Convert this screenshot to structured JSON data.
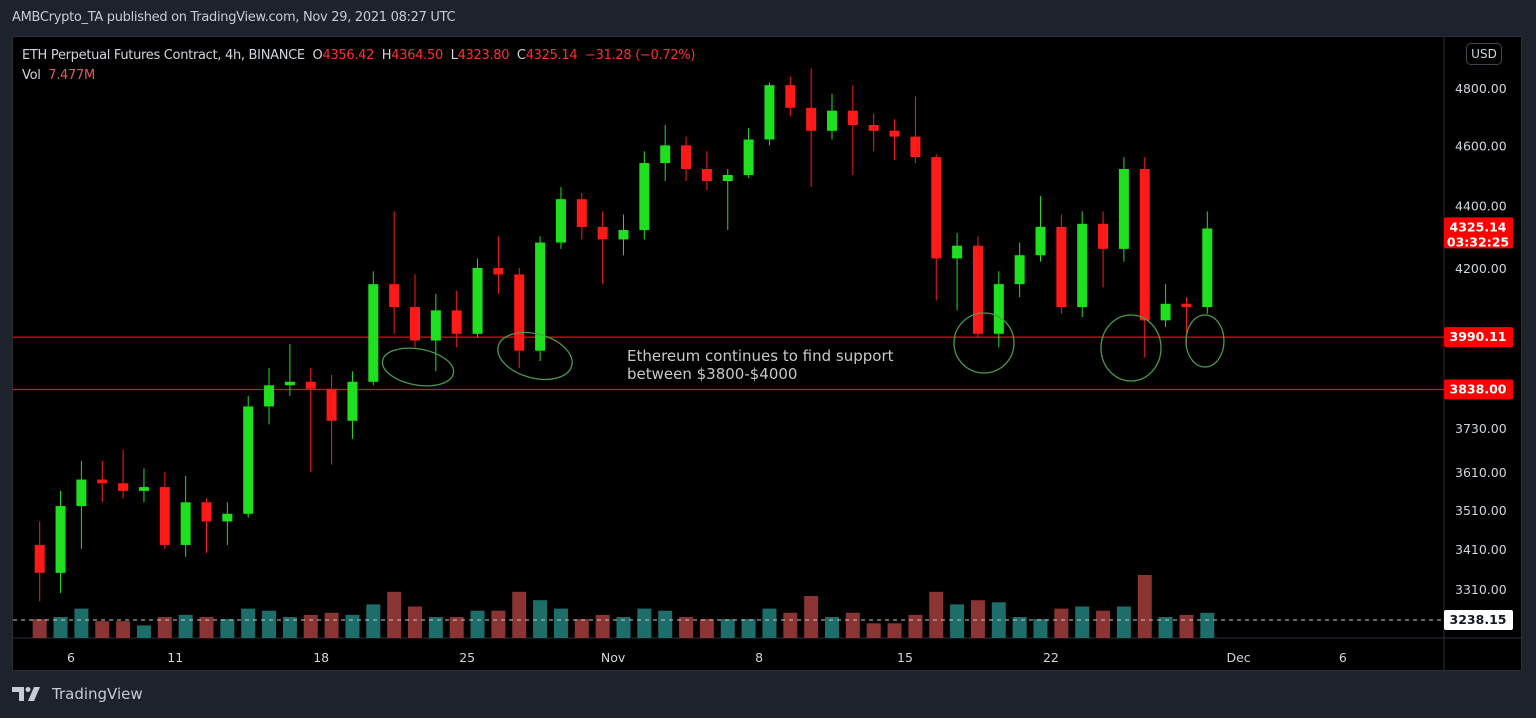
{
  "header": {
    "published": "AMBCrypto_TA published on TradingView.com, Nov 29, 2021 08:27 UTC"
  },
  "legend": {
    "symbol": "ETH Perpetual Futures Contract, 4h, BINANCE",
    "open_label": "O",
    "open": "4356.42",
    "high_label": "H",
    "high": "4364.50",
    "low_label": "L",
    "low": "4323.80",
    "close_label": "C",
    "close": "4325.14",
    "change": "−31.28 (−0.72%)",
    "vol_label": "Vol",
    "vol": "7.477M"
  },
  "currency_button": "USD",
  "footer": {
    "logo_text": "TradingView",
    "logo_icon": "tradingview-logo-icon"
  },
  "colors": {
    "up": "#1fe01f",
    "down": "#ff1a1a",
    "vol_up": "#1d6e6a",
    "vol_down": "#8a3434",
    "level_line": "#e01010",
    "annotation": "#4a9a4a",
    "last_price_badge": "#ff0000"
  },
  "chart_data": {
    "type": "candlestick",
    "scale": "log",
    "ylim": [
      3180,
      4950
    ],
    "y_ticks": [
      "4800.00",
      "4600.00",
      "4400.00",
      "4200.00",
      "3730.00",
      "3610.00",
      "3510.00",
      "3410.00",
      "3310.00"
    ],
    "y_tick_values": [
      4800,
      4600,
      4400,
      4200,
      3730,
      3610,
      3510,
      3410,
      3310
    ],
    "x_ticks": [
      "6",
      "11",
      "18",
      "25",
      "Nov",
      "8",
      "15",
      "22",
      "Dec",
      "6"
    ],
    "x_tick_dates": [
      "2021-10-06",
      "2021-10-11",
      "2021-10-18",
      "2021-10-25",
      "2021-11-01",
      "2021-11-08",
      "2021-11-15",
      "2021-11-22",
      "2021-12-01",
      "2021-12-06"
    ],
    "grid": false,
    "last_price": {
      "value": "4325.14",
      "countdown": "03:32:25"
    },
    "horizontal_levels": [
      {
        "value": 3990.11,
        "label": "3990.11"
      },
      {
        "value": 3838.0,
        "label": "3838.00"
      }
    ],
    "volume_ma_label": "3238.15",
    "annotation": "Ethereum continues to find support\nbetween $3800-$4000",
    "candles": [
      [
        "2021-10-04",
        3420,
        3480,
        3280,
        3350,
        9
      ],
      [
        "2021-10-05",
        3350,
        3560,
        3300,
        3520,
        10
      ],
      [
        "2021-10-06",
        3520,
        3640,
        3410,
        3590,
        14
      ],
      [
        "2021-10-07",
        3590,
        3640,
        3530,
        3580,
        8
      ],
      [
        "2021-10-08",
        3580,
        3670,
        3540,
        3560,
        8
      ],
      [
        "2021-10-09",
        3560,
        3620,
        3530,
        3570,
        6
      ],
      [
        "2021-10-10",
        3570,
        3610,
        3410,
        3420,
        10
      ],
      [
        "2021-10-11",
        3420,
        3600,
        3390,
        3530,
        11
      ],
      [
        "2021-10-12",
        3530,
        3540,
        3400,
        3480,
        10
      ],
      [
        "2021-10-13",
        3480,
        3530,
        3420,
        3500,
        9
      ],
      [
        "2021-10-14",
        3500,
        3820,
        3490,
        3790,
        14
      ],
      [
        "2021-10-15",
        3790,
        3900,
        3740,
        3850,
        13
      ],
      [
        "2021-10-16",
        3850,
        3970,
        3820,
        3860,
        10
      ],
      [
        "2021-10-17",
        3860,
        3900,
        3610,
        3840,
        11
      ],
      [
        "2021-10-18",
        3840,
        3880,
        3630,
        3750,
        12
      ],
      [
        "2021-10-19",
        3750,
        3890,
        3700,
        3860,
        11
      ],
      [
        "2021-10-20",
        3860,
        4190,
        3850,
        4150,
        16
      ],
      [
        "2021-10-21",
        4150,
        4380,
        4000,
        4080,
        22
      ],
      [
        "2021-10-22",
        4080,
        4180,
        3960,
        3980,
        15
      ],
      [
        "2021-10-23",
        3980,
        4120,
        3890,
        4070,
        10
      ],
      [
        "2021-10-24",
        4070,
        4130,
        3960,
        4000,
        10
      ],
      [
        "2021-10-25",
        4000,
        4230,
        3990,
        4200,
        13
      ],
      [
        "2021-10-26",
        4200,
        4300,
        4120,
        4180,
        13
      ],
      [
        "2021-10-27",
        4180,
        4200,
        3900,
        3950,
        22
      ],
      [
        "2021-10-28",
        3950,
        4300,
        3920,
        4280,
        18
      ],
      [
        "2021-10-29",
        4280,
        4460,
        4260,
        4420,
        14
      ],
      [
        "2021-10-30",
        4420,
        4440,
        4290,
        4330,
        9
      ],
      [
        "2021-10-31",
        4330,
        4380,
        4150,
        4290,
        11
      ],
      [
        "2021-11-01",
        4290,
        4370,
        4240,
        4320,
        10
      ],
      [
        "2021-11-02",
        4320,
        4580,
        4290,
        4540,
        14
      ],
      [
        "2021-11-03",
        4540,
        4670,
        4480,
        4600,
        13
      ],
      [
        "2021-11-04",
        4600,
        4630,
        4480,
        4520,
        10
      ],
      [
        "2021-11-05",
        4520,
        4580,
        4450,
        4480,
        9
      ],
      [
        "2021-11-06",
        4480,
        4520,
        4320,
        4500,
        9
      ],
      [
        "2021-11-07",
        4500,
        4660,
        4490,
        4620,
        9
      ],
      [
        "2021-11-08",
        4620,
        4820,
        4600,
        4810,
        14
      ],
      [
        "2021-11-09",
        4810,
        4840,
        4700,
        4730,
        12
      ],
      [
        "2021-11-10",
        4730,
        4870,
        4460,
        4650,
        20
      ],
      [
        "2021-11-11",
        4650,
        4780,
        4620,
        4720,
        10
      ],
      [
        "2021-11-12",
        4720,
        4810,
        4500,
        4670,
        12
      ],
      [
        "2021-11-13",
        4670,
        4710,
        4580,
        4650,
        7
      ],
      [
        "2021-11-14",
        4650,
        4690,
        4550,
        4630,
        7
      ],
      [
        "2021-11-15",
        4630,
        4770,
        4540,
        4560,
        11
      ],
      [
        "2021-11-16",
        4560,
        4570,
        4100,
        4230,
        22
      ],
      [
        "2021-11-17",
        4230,
        4310,
        4070,
        4270,
        16
      ],
      [
        "2021-11-18",
        4270,
        4300,
        3990,
        4000,
        18
      ],
      [
        "2021-11-19",
        4000,
        4190,
        3960,
        4150,
        17
      ],
      [
        "2021-11-20",
        4150,
        4280,
        4110,
        4240,
        10
      ],
      [
        "2021-11-21",
        4240,
        4430,
        4220,
        4330,
        9
      ],
      [
        "2021-11-22",
        4330,
        4370,
        4060,
        4080,
        14
      ],
      [
        "2021-11-23",
        4080,
        4380,
        4050,
        4340,
        15
      ],
      [
        "2021-11-24",
        4340,
        4380,
        4140,
        4260,
        13
      ],
      [
        "2021-11-25",
        4260,
        4560,
        4220,
        4520,
        15
      ],
      [
        "2021-11-26",
        4520,
        4560,
        3930,
        4040,
        30
      ],
      [
        "2021-11-27",
        4040,
        4150,
        4020,
        4090,
        10
      ],
      [
        "2021-11-28",
        4090,
        4110,
        3960,
        4080,
        11
      ],
      [
        "2021-11-29",
        4080,
        4380,
        4060,
        4325,
        12
      ]
    ]
  }
}
